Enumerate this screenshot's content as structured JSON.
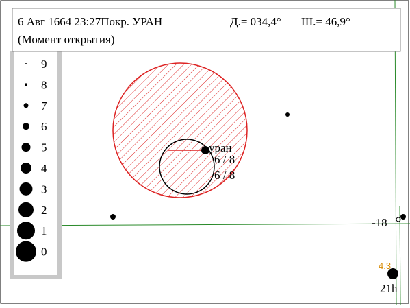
{
  "header": {
    "date_event": "6 Авг 1664 23:27Покр. УРАН",
    "longitude": "Д.= 034,4°",
    "latitude": "Ш.= 46,9°",
    "moment": "(Момент открытия)"
  },
  "legend": {
    "magnitudes": [
      "9",
      "8",
      "7",
      "6",
      "5",
      "4",
      "3",
      "2",
      "1",
      "0"
    ]
  },
  "map": {
    "planet_label": "уран",
    "ratio_1": "6 / 8",
    "ratio_2": "6 / 8",
    "dec_label": "-18",
    "mag_label": "4.3",
    "ra_label": "21h"
  }
}
